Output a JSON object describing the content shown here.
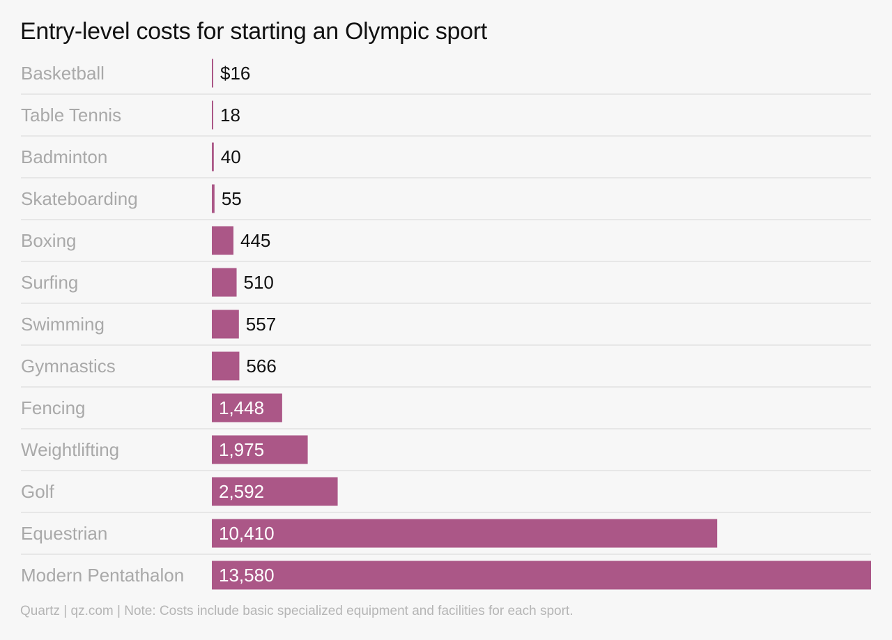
{
  "chart_data": {
    "type": "bar",
    "orientation": "horizontal",
    "title": "Entry-level costs for starting an Olympic sport",
    "categories": [
      "Basketball",
      "Table Tennis",
      "Badminton",
      "Skateboarding",
      "Boxing",
      "Surfing",
      "Swimming",
      "Gymnastics",
      "Fencing",
      "Weightlifting",
      "Golf",
      "Equestrian",
      "Modern Pentathalon"
    ],
    "values": [
      16,
      18,
      40,
      55,
      445,
      510,
      557,
      566,
      1448,
      1975,
      2592,
      10410,
      13580
    ],
    "value_labels": [
      "$16",
      "18",
      "40",
      "55",
      "445",
      "510",
      "557",
      "566",
      "1,448",
      "1,975",
      "2,592",
      "10,410",
      "13,580"
    ],
    "xlim": [
      0,
      13580
    ],
    "grid": false,
    "bar_color": "#ab5787"
  },
  "footer": "Quartz | qz.com | Note: Costs include basic specialized equipment and facilities for each sport."
}
